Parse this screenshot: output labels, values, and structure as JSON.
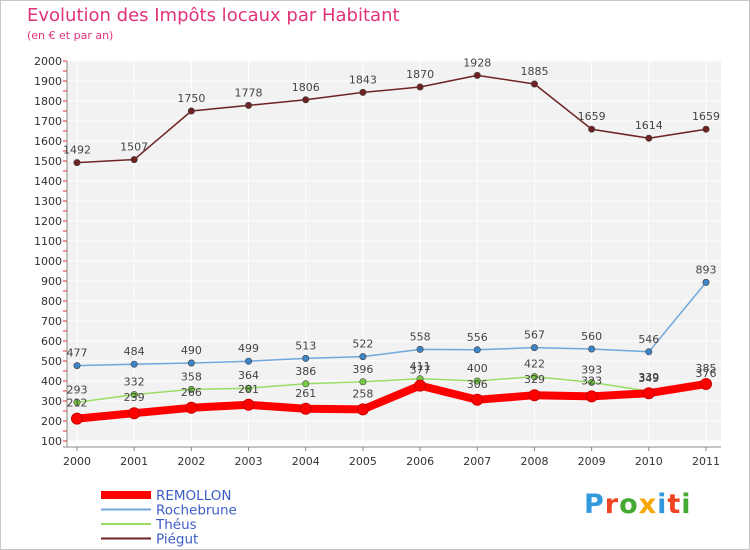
{
  "title": "Evolution des Impôts locaux par Habitant",
  "subtitle": "(en € et par an)",
  "logo": {
    "text": "Proxiti",
    "colors": [
      "#3399dd",
      "#ee4422",
      "#44aa33",
      "#f7a500",
      "#3399dd",
      "#ee4422",
      "#44aa33"
    ]
  },
  "chart_data": {
    "type": "line",
    "x": [
      "2000",
      "2001",
      "2002",
      "2003",
      "2004",
      "2005",
      "2006",
      "2007",
      "2008",
      "2009",
      "2010",
      "2011"
    ],
    "ylim": [
      100,
      2000
    ],
    "yticks": [
      100,
      200,
      300,
      400,
      500,
      600,
      700,
      800,
      900,
      1000,
      1100,
      1200,
      1300,
      1400,
      1500,
      1600,
      1700,
      1800,
      1900,
      2000
    ],
    "grid": true,
    "legend_position": "bottom-left",
    "series": [
      {
        "name": "REMOLLON",
        "color": "#ff0000",
        "point_color": "#ff0000",
        "emphasis": true,
        "values": [
          212,
          239,
          266,
          281,
          261,
          258,
          377,
          306,
          329,
          323,
          339,
          385
        ]
      },
      {
        "name": "Rochebrune",
        "color": "#6fa8dc",
        "point_color": "#3d85c6",
        "values": [
          477,
          484,
          490,
          499,
          513,
          522,
          558,
          556,
          567,
          560,
          546,
          893
        ]
      },
      {
        "name": "Théus",
        "color": "#99dd66",
        "point_color": "#77cc44",
        "values": [
          293,
          332,
          358,
          364,
          386,
          396,
          411,
          400,
          422,
          393,
          349,
          376
        ]
      },
      {
        "name": "Piégut",
        "color": "#6e2222",
        "point_color": "#6e2222",
        "values": [
          1492,
          1507,
          1750,
          1778,
          1806,
          1843,
          1870,
          1928,
          1885,
          1659,
          1614,
          1659
        ]
      }
    ]
  }
}
